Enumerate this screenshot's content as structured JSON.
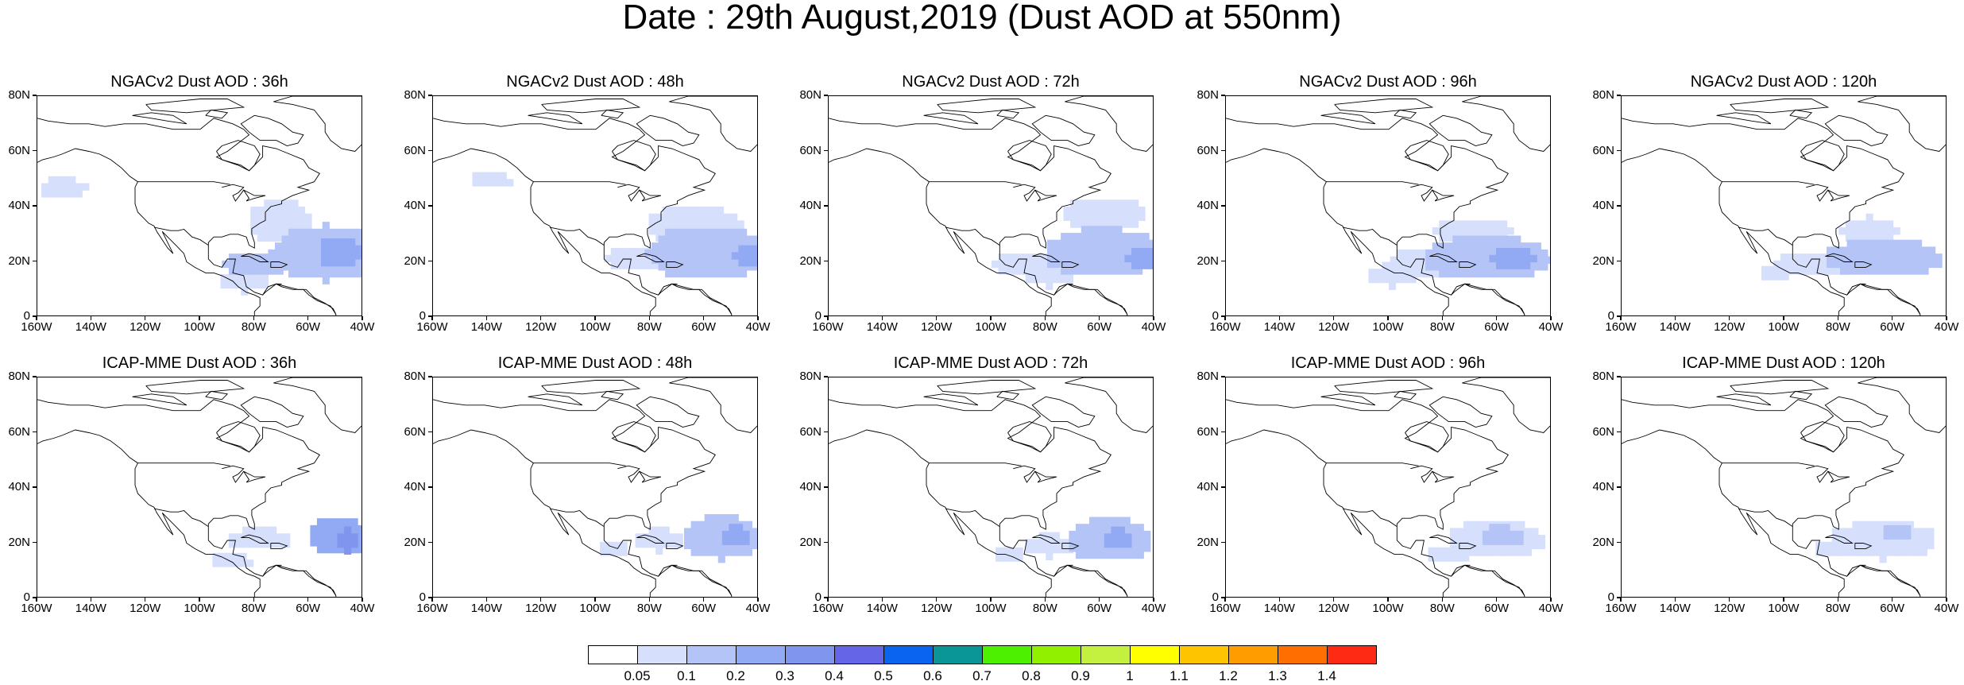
{
  "title": "Date : 29th August,2019 (Dust AOD at 550nm)",
  "colors": {
    "levels": [
      "#ffffff",
      "#d6dffb",
      "#b4c4f7",
      "#92aaf4",
      "#7f95ee",
      "#6565e8",
      "#0a64f0",
      "#0a9696",
      "#4cf000",
      "#90f000",
      "#c4f040",
      "#ffff00",
      "#ffc400",
      "#ff9c00",
      "#ff6e00",
      "#ff2a14"
    ],
    "coast": "#000000"
  },
  "colorbar": {
    "labels": [
      "0.05",
      "0.1",
      "0.2",
      "0.3",
      "0.4",
      "0.5",
      "0.6",
      "0.7",
      "0.8",
      "0.9",
      "1",
      "1.1",
      "1.2",
      "1.3",
      "1.4"
    ]
  },
  "axes": {
    "y_ticks": [
      "80N",
      "60N",
      "40N",
      "20N",
      "0"
    ],
    "x_ticks": [
      "160W",
      "140W",
      "120W",
      "100W",
      "80W",
      "60W",
      "40W"
    ],
    "lon_range": [
      -160,
      -40
    ],
    "lat_range": [
      0,
      80
    ]
  },
  "panels": [
    {
      "title": "NGACv2 Dust AOD : 36h",
      "model": "NGACv2",
      "lead": "36h",
      "dust": [
        {
          "lon": -55,
          "lat": 22,
          "rlon": 20,
          "rlat": 10,
          "level": 2
        },
        {
          "lon": -50,
          "lat": 22,
          "rlon": 8,
          "rlat": 6,
          "level": 3
        },
        {
          "lon": -80,
          "lat": 18,
          "rlon": 12,
          "rlat": 5,
          "level": 2
        },
        {
          "lon": -72,
          "lat": 33,
          "rlon": 12,
          "rlat": 8,
          "level": 1
        },
        {
          "lon": -152,
          "lat": 45,
          "rlon": 9,
          "rlat": 4,
          "level": 1
        },
        {
          "lon": -85,
          "lat": 12,
          "rlon": 10,
          "rlat": 4,
          "level": 1
        }
      ]
    },
    {
      "title": "NGACv2 Dust AOD : 48h",
      "model": "NGACv2",
      "lead": "48h",
      "dust": [
        {
          "lon": -60,
          "lat": 22,
          "rlon": 22,
          "rlat": 10,
          "level": 2
        },
        {
          "lon": -44,
          "lat": 21,
          "rlon": 6,
          "rlat": 5,
          "level": 3
        },
        {
          "lon": -85,
          "lat": 20,
          "rlon": 12,
          "rlat": 5,
          "level": 1
        },
        {
          "lon": -65,
          "lat": 32,
          "rlon": 18,
          "rlat": 7,
          "level": 1
        },
        {
          "lon": -140,
          "lat": 48,
          "rlon": 8,
          "rlat": 3,
          "level": 1
        }
      ]
    },
    {
      "title": "NGACv2 Dust AOD : 72h",
      "model": "NGACv2",
      "lead": "72h",
      "dust": [
        {
          "lon": -60,
          "lat": 22,
          "rlon": 22,
          "rlat": 9,
          "level": 2
        },
        {
          "lon": -45,
          "lat": 20,
          "rlon": 6,
          "rlat": 5,
          "level": 3
        },
        {
          "lon": -88,
          "lat": 18,
          "rlon": 12,
          "rlat": 5,
          "level": 1
        },
        {
          "lon": -60,
          "lat": 36,
          "rlon": 16,
          "rlat": 6,
          "level": 1
        },
        {
          "lon": -80,
          "lat": 14,
          "rlon": 10,
          "rlat": 4,
          "level": 1
        }
      ]
    },
    {
      "title": "NGACv2 Dust AOD : 96h",
      "model": "NGACv2",
      "lead": "96h",
      "dust": [
        {
          "lon": -65,
          "lat": 20,
          "rlon": 24,
          "rlat": 8,
          "level": 2
        },
        {
          "lon": -55,
          "lat": 20,
          "rlon": 8,
          "rlat": 5,
          "level": 3
        },
        {
          "lon": -90,
          "lat": 18,
          "rlon": 12,
          "rlat": 6,
          "level": 1
        },
        {
          "lon": -70,
          "lat": 30,
          "rlon": 14,
          "rlat": 5,
          "level": 1
        },
        {
          "lon": -100,
          "lat": 14,
          "rlon": 10,
          "rlat": 4,
          "level": 1
        }
      ]
    },
    {
      "title": "NGACv2 Dust AOD : 120h",
      "model": "NGACv2",
      "lead": "120h",
      "dust": [
        {
          "lon": -65,
          "lat": 20,
          "rlon": 22,
          "rlat": 7,
          "level": 2
        },
        {
          "lon": -60,
          "lat": 20,
          "rlon": 8,
          "rlat": 4,
          "level": 2
        },
        {
          "lon": -90,
          "lat": 18,
          "rlon": 14,
          "rlat": 5,
          "level": 1
        },
        {
          "lon": -70,
          "lat": 30,
          "rlon": 10,
          "rlat": 5,
          "level": 1
        },
        {
          "lon": -105,
          "lat": 14,
          "rlon": 6,
          "rlat": 3,
          "level": 1
        }
      ]
    },
    {
      "title": "ICAP-MME Dust AOD : 36h",
      "model": "ICAP-MME",
      "lead": "36h",
      "dust": [
        {
          "lon": -50,
          "lat": 21,
          "rlon": 12,
          "rlat": 7,
          "level": 3
        },
        {
          "lon": -47,
          "lat": 20,
          "rlon": 5,
          "rlat": 4,
          "level": 4
        },
        {
          "lon": -80,
          "lat": 20,
          "rlon": 12,
          "rlat": 4,
          "level": 1
        },
        {
          "lon": -90,
          "lat": 12,
          "rlon": 8,
          "rlat": 3,
          "level": 1
        }
      ]
    },
    {
      "title": "ICAP-MME Dust AOD : 48h",
      "model": "ICAP-MME",
      "lead": "48h",
      "dust": [
        {
          "lon": -55,
          "lat": 21,
          "rlon": 15,
          "rlat": 8,
          "level": 2
        },
        {
          "lon": -50,
          "lat": 21,
          "rlon": 6,
          "rlat": 4,
          "level": 3
        },
        {
          "lon": -78,
          "lat": 20,
          "rlon": 10,
          "rlat": 4,
          "level": 1
        },
        {
          "lon": -95,
          "lat": 16,
          "rlon": 6,
          "rlat": 3,
          "level": 1
        }
      ]
    },
    {
      "title": "ICAP-MME Dust AOD : 72h",
      "model": "ICAP-MME",
      "lead": "72h",
      "dust": [
        {
          "lon": -58,
          "lat": 20,
          "rlon": 16,
          "rlat": 8,
          "level": 2
        },
        {
          "lon": -55,
          "lat": 20,
          "rlon": 6,
          "rlat": 4,
          "level": 3
        },
        {
          "lon": -80,
          "lat": 18,
          "rlon": 10,
          "rlat": 4,
          "level": 1
        },
        {
          "lon": -95,
          "lat": 14,
          "rlon": 6,
          "rlat": 3,
          "level": 1
        }
      ]
    },
    {
      "title": "ICAP-MME Dust AOD : 96h",
      "model": "ICAP-MME",
      "lead": "96h",
      "dust": [
        {
          "lon": -62,
          "lat": 20,
          "rlon": 18,
          "rlat": 7,
          "level": 1
        },
        {
          "lon": -60,
          "lat": 21,
          "rlon": 8,
          "rlat": 4,
          "level": 2
        },
        {
          "lon": -80,
          "lat": 14,
          "rlon": 8,
          "rlat": 3,
          "level": 1
        }
      ]
    },
    {
      "title": "ICAP-MME Dust AOD : 120h",
      "model": "ICAP-MME",
      "lead": "120h",
      "dust": [
        {
          "lon": -65,
          "lat": 20,
          "rlon": 20,
          "rlat": 7,
          "level": 1
        },
        {
          "lon": -60,
          "lat": 22,
          "rlon": 6,
          "rlat": 3,
          "level": 2
        },
        {
          "lon": -85,
          "lat": 16,
          "rlon": 6,
          "rlat": 3,
          "level": 1
        }
      ]
    }
  ]
}
